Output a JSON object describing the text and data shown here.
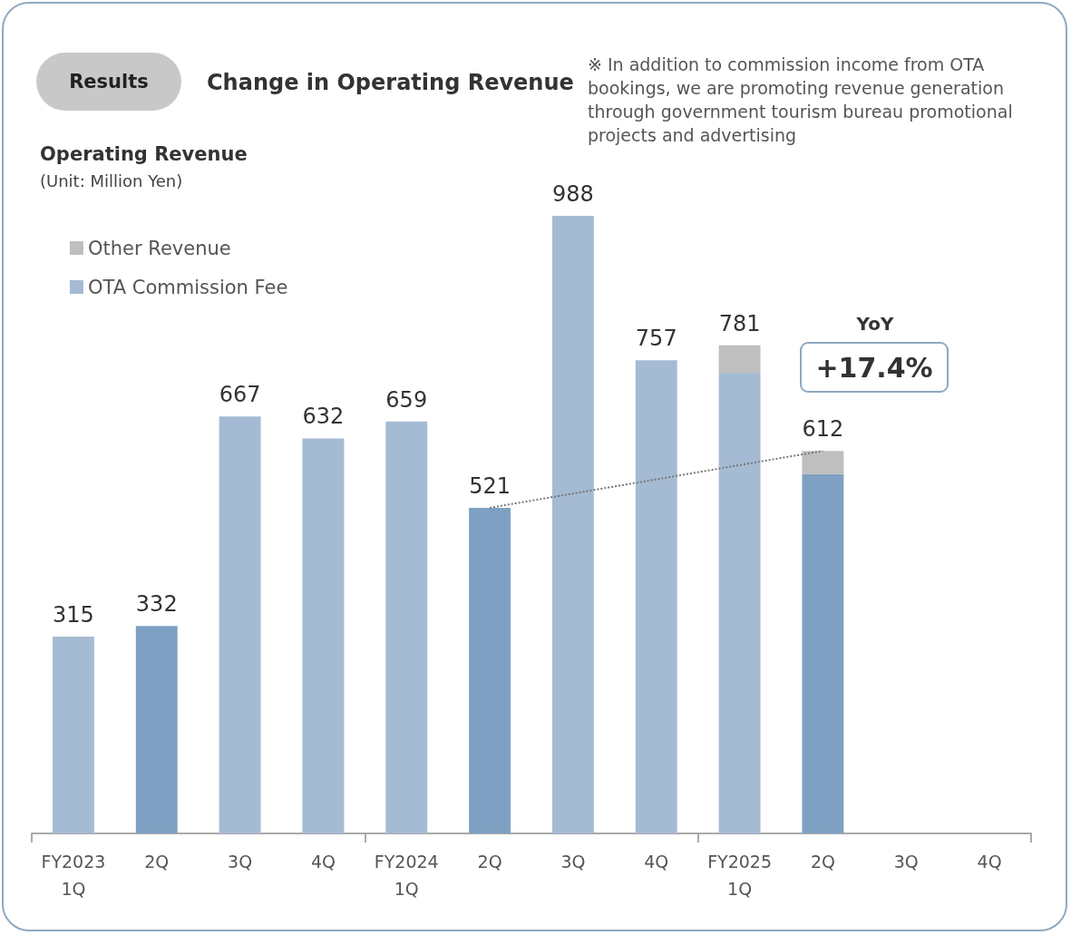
{
  "chart_data": {
    "type": "bar",
    "title": "Change in Operating Revenue",
    "subtitle": "(Unit: Million Yen)",
    "ylabel": "Operating Revenue",
    "annotations": [
      "Results",
      "※ In addition to commission income from OTA bookings, we are promoting revenue generation through government tourism bureau promotional projects and advertising",
      "YoY",
      "+17.4%"
    ],
    "categories": [
      "FY2023\n1Q",
      "2Q",
      "3Q",
      "4Q",
      "FY2024\n1Q",
      "2Q",
      "3Q",
      "4Q",
      "FY2025\n1Q",
      "2Q",
      "3Q",
      "4Q"
    ],
    "stacked": true,
    "legend": "top left",
    "series": [
      {
        "name": "OTA Commission Fee",
        "color": "#a5bbd3",
        "colors": [
          "#a5bbd3",
          "#7ea1c3",
          "#a5bbd3",
          "#a5bbd3",
          "#a5bbd3",
          "#7ea1c3",
          "#a5bbd3",
          "#a5bbd3",
          "#a5bbd3",
          "#7ea1c3",
          "#a5bbd3",
          "#a5bbd3"
        ],
        "values": [
          315,
          332,
          667,
          632,
          659,
          521,
          988,
          757,
          737,
          575,
          null,
          null
        ],
        "value_labels": [
          "315",
          "332",
          "667",
          "632",
          "659",
          null,
          "988",
          "757",
          null,
          null,
          null,
          null
        ]
      },
      {
        "name": "Other Revenue",
        "color": "#bfbfbf",
        "values": [
          null,
          null,
          null,
          null,
          null,
          null,
          null,
          null,
          44,
          37,
          null,
          null
        ]
      },
      {
        "type": "line",
        "color": "#777777",
        "line_style": "dotted",
        "marker": "none",
        "values": [
          null,
          null,
          null,
          null,
          null,
          521,
          null,
          null,
          null,
          612,
          null,
          null
        ],
        "value_labels": [
          null,
          null,
          null,
          null,
          null,
          "521",
          null,
          null,
          null,
          null,
          null,
          null
        ]
      }
    ],
    "totals": [
      null,
      null,
      null,
      null,
      null,
      null,
      null,
      null,
      "781",
      "612",
      null,
      null
    ]
  }
}
